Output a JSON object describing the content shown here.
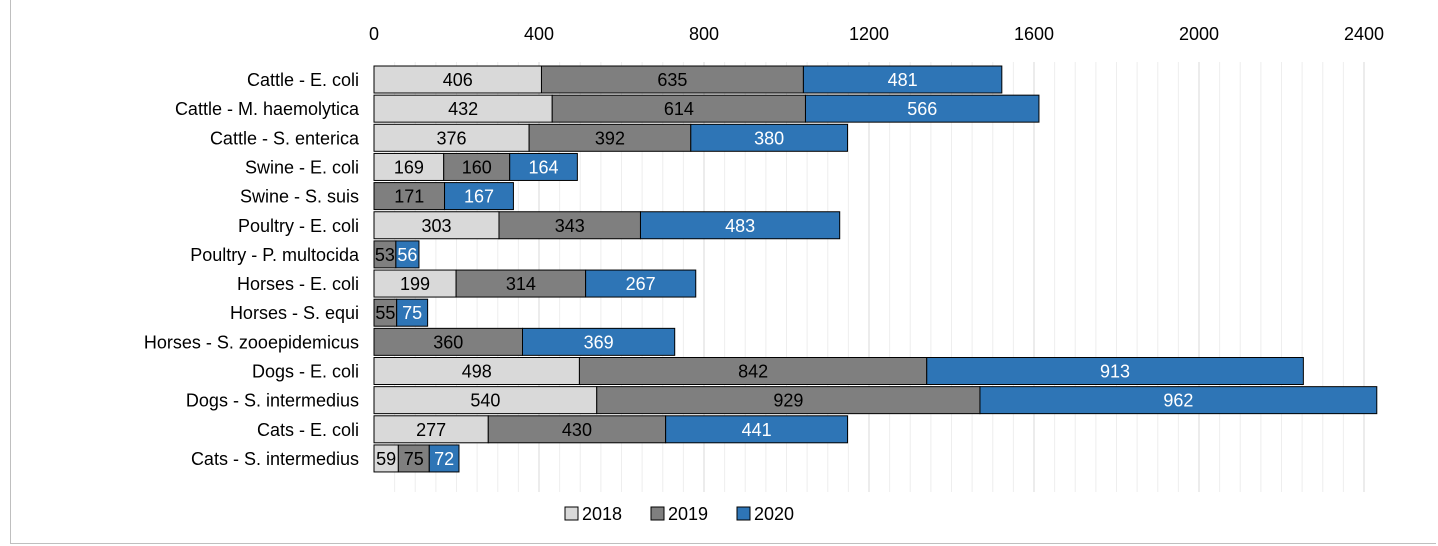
{
  "chart_data": {
    "type": "bar",
    "orientation": "horizontal",
    "stacked": true,
    "categories": [
      "Cattle - E. coli",
      "Cattle - M. haemolytica",
      "Cattle - S. enterica",
      "Swine - E. coli",
      "Swine - S. suis",
      "Poultry - E. coli",
      "Poultry - P. multocida",
      "Horses - E. coli",
      "Horses - S. equi",
      "Horses - S. zooepidemicus",
      "Dogs - E. coli",
      "Dogs - S. intermedius",
      "Cats - E. coli",
      "Cats - S. intermedius"
    ],
    "series": [
      {
        "name": "2018",
        "color": "#d9d9d9",
        "label_color": "#000000",
        "values": [
          406,
          432,
          376,
          169,
          null,
          303,
          null,
          199,
          null,
          null,
          498,
          540,
          277,
          59
        ]
      },
      {
        "name": "2019",
        "color": "#7f7f7f",
        "label_color": "#000000",
        "values": [
          635,
          614,
          392,
          160,
          171,
          343,
          53,
          314,
          55,
          360,
          842,
          929,
          430,
          75
        ]
      },
      {
        "name": "2020",
        "color": "#2e75b6",
        "label_color": "#ffffff",
        "values": [
          481,
          566,
          380,
          164,
          167,
          483,
          56,
          267,
          75,
          369,
          913,
          962,
          441,
          72
        ]
      }
    ],
    "xlim": [
      0,
      2400
    ],
    "xticks": [
      "0",
      "400",
      "800",
      "1200",
      "1600",
      "2000",
      "2400"
    ],
    "x_axis_position": "top",
    "grid": true,
    "legend_position": "bottom",
    "title": "",
    "xlabel": "",
    "ylabel": ""
  }
}
